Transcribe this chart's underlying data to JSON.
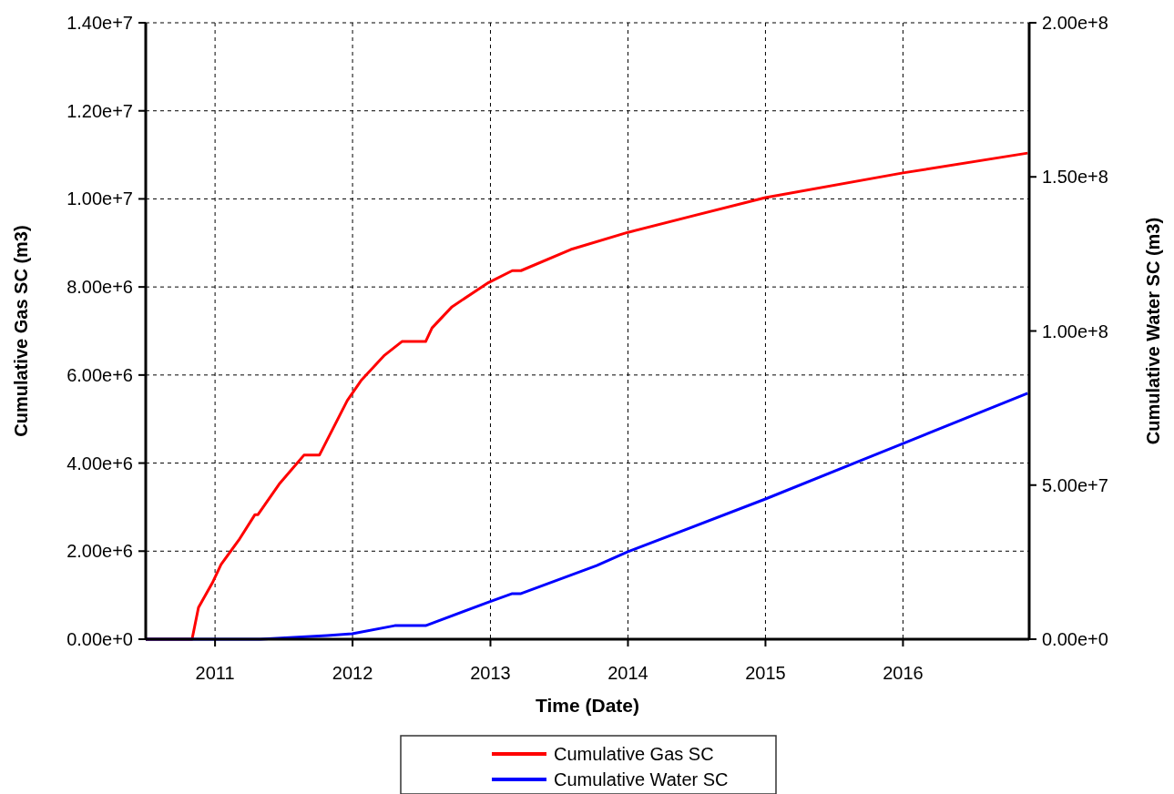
{
  "chart_data": {
    "type": "line",
    "xlabel": "Time (Date)",
    "ylabel": "Cumulative Gas SC (m3)",
    "y2label": "Cumulative Water SC (m3)",
    "xlim": [
      "2010-07-01",
      "2016-12-01"
    ],
    "xticks": [
      {
        "value": "2011-01-01",
        "label": "2011"
      },
      {
        "value": "2012-01-01",
        "label": "2012"
      },
      {
        "value": "2013-01-01",
        "label": "2013"
      },
      {
        "value": "2014-01-01",
        "label": "2014"
      },
      {
        "value": "2015-01-01",
        "label": "2015"
      },
      {
        "value": "2016-01-01",
        "label": "2016"
      }
    ],
    "ylim": [
      0,
      14000000
    ],
    "yticks": [
      {
        "value": 0,
        "label": "0.00e+0"
      },
      {
        "value": 2000000,
        "label": "2.00e+6"
      },
      {
        "value": 4000000,
        "label": "4.00e+6"
      },
      {
        "value": 6000000,
        "label": "6.00e+6"
      },
      {
        "value": 8000000,
        "label": "8.00e+6"
      },
      {
        "value": 10000000,
        "label": "1.00e+7"
      },
      {
        "value": 12000000,
        "label": "1.20e+7"
      },
      {
        "value": 14000000,
        "label": "1.40e+7"
      }
    ],
    "y2lim": [
      0,
      200000000
    ],
    "y2ticks": [
      {
        "value": 0,
        "label": "0.00e+0"
      },
      {
        "value": 50000000,
        "label": "5.00e+7"
      },
      {
        "value": 100000000,
        "label": "1.00e+8"
      },
      {
        "value": 150000000,
        "label": "1.50e+8"
      },
      {
        "value": 200000000,
        "label": "2.00e+8"
      }
    ],
    "grid": true,
    "legend": "bottom",
    "line_style": "solid",
    "marker": "none",
    "series": [
      {
        "name": "Cumulative Gas SC",
        "color": "#ff0000",
        "x": [
          "2010-07-01",
          "2010-11-01",
          "2010-11-18",
          "2010-12-25",
          "2011-01-17",
          "2011-03-05",
          "2011-04-17",
          "2011-04-25",
          "2011-06-20",
          "2011-08-25",
          "2011-10-05",
          "2011-12-18",
          "2012-01-25",
          "2012-03-26",
          "2012-05-11",
          "2012-07-13",
          "2012-07-30",
          "2012-09-21",
          "2012-12-27",
          "2013-02-28",
          "2013-03-23",
          "2013-08-02",
          "2014-01-01",
          "2015-01-01",
          "2016-01-01",
          "2016-11-27"
        ],
        "values": [
          0,
          0,
          720000,
          1280000,
          1700000,
          2250000,
          2830000,
          2830000,
          3520000,
          4180000,
          4180000,
          5420000,
          5890000,
          6450000,
          6760000,
          6760000,
          7070000,
          7550000,
          8100000,
          8370000,
          8370000,
          8850000,
          9240000,
          10030000,
          10590000,
          11040000
        ]
      },
      {
        "name": "Cumulative Water SC",
        "color": "#0000ff",
        "axis": "y2",
        "x": [
          "2010-07-01",
          "2011-05-01",
          "2011-10-25",
          "2011-12-31",
          "2012-04-22",
          "2012-07-13",
          "2012-12-28",
          "2013-02-28",
          "2013-03-23",
          "2013-10-10",
          "2014-01-01",
          "2015-01-01",
          "2016-01-01",
          "2016-11-27"
        ],
        "values": [
          0,
          0,
          1200000,
          1800000,
          4400000,
          4400000,
          12100000,
          14800000,
          14800000,
          23900000,
          28400000,
          45500000,
          63500000,
          79800000
        ]
      }
    ]
  }
}
